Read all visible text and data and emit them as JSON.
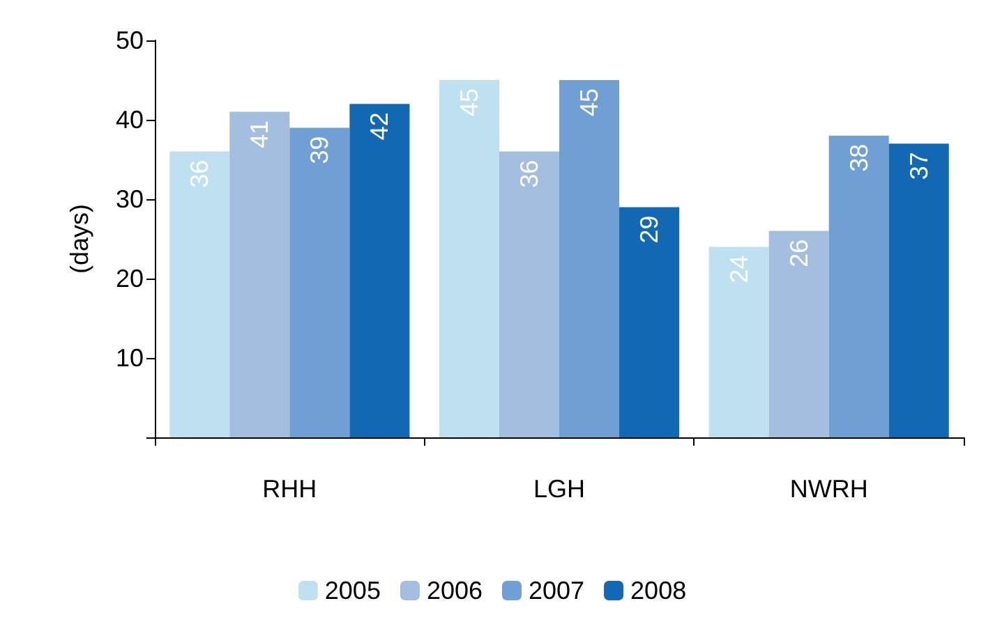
{
  "chart_data": {
    "type": "bar",
    "ylabel": "(days)",
    "categories": [
      "RHH",
      "LGH",
      "NWRH"
    ],
    "series": [
      {
        "name": "2005",
        "color": "#bfe0f0",
        "values": [
          36,
          45,
          24
        ]
      },
      {
        "name": "2006",
        "color": "#a3bedf",
        "values": [
          41,
          36,
          26
        ]
      },
      {
        "name": "2007",
        "color": "#6f9fd3",
        "values": [
          39,
          45,
          38
        ]
      },
      {
        "name": "2008",
        "color": "#1268b3",
        "values": [
          42,
          29,
          37
        ]
      }
    ],
    "ylim": [
      0,
      50
    ],
    "yticks": [
      {
        "value": 0,
        "label": null
      },
      10,
      20,
      30,
      40,
      50
    ],
    "grid": false,
    "legend": "bottom",
    "data_labels": true
  }
}
